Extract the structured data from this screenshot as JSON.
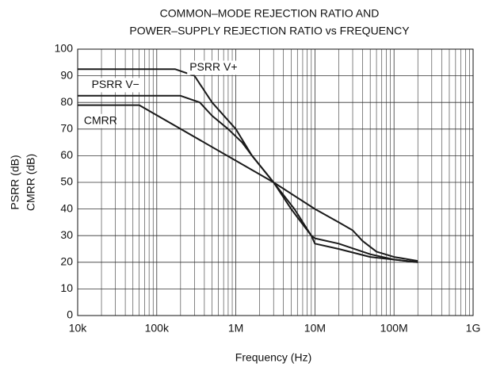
{
  "chart_data": {
    "type": "line",
    "title": [
      "COMMON–MODE REJECTION RATIO AND",
      "POWER–SUPPLY REJECTION RATIO vs FREQUENCY"
    ],
    "xlabel": "Frequency (Hz)",
    "ylabel": [
      "PSRR (dB)",
      "CMRR (dB)"
    ],
    "xscale": "log",
    "xlim": [
      10000,
      1000000000
    ],
    "xticks": [
      {
        "value": 10000,
        "label": "10k"
      },
      {
        "value": 100000,
        "label": "100k"
      },
      {
        "value": 1000000,
        "label": "1M"
      },
      {
        "value": 10000000,
        "label": "10M"
      },
      {
        "value": 100000000,
        "label": "100M"
      },
      {
        "value": 1000000000,
        "label": "1G"
      }
    ],
    "ylim": [
      0,
      100
    ],
    "yticks": [
      0,
      10,
      20,
      30,
      40,
      50,
      60,
      70,
      80,
      90,
      100
    ],
    "grid": true,
    "minor_grid": true,
    "series": [
      {
        "name": "PSRR V+",
        "color": "#1a1a1a",
        "x": [
          10000,
          170000,
          300000,
          500000,
          1000000,
          1600000,
          3000000,
          5000000,
          9000000,
          10000000,
          20000000,
          50000000,
          100000000,
          200000000
        ],
        "values": [
          92.5,
          92.5,
          90,
          80,
          70,
          60,
          50,
          40,
          30,
          29,
          27,
          23,
          21,
          20
        ]
      },
      {
        "name": "PSRR V−",
        "color": "#1a1a1a",
        "x": [
          10000,
          200000,
          350000,
          500000,
          800000,
          1200000,
          1600000,
          3000000,
          5500000,
          9000000,
          10000000,
          20000000,
          50000000,
          200000000
        ],
        "values": [
          82.5,
          82.5,
          80,
          75,
          70,
          65,
          60,
          50,
          40,
          30,
          27,
          25,
          22,
          20
        ]
      },
      {
        "name": "CMRR",
        "color": "#1a1a1a",
        "x": [
          10000,
          60000,
          3000000,
          10000000,
          20000000,
          30000000,
          40000000,
          60000000,
          100000000,
          200000000
        ],
        "values": [
          79,
          79,
          50,
          40,
          35,
          32,
          28,
          24,
          22,
          20.5
        ]
      }
    ],
    "annotations": [
      {
        "text": "PSRR V+",
        "x": 260000,
        "y": 93
      },
      {
        "text": "PSRR V−",
        "x": 15000,
        "y": 86.5
      },
      {
        "text": "CMRR",
        "x": 12000,
        "y": 73
      }
    ]
  }
}
